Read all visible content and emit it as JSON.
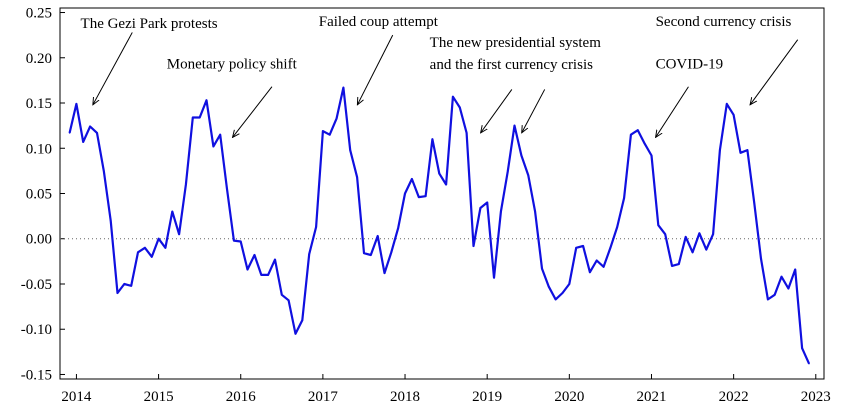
{
  "chart_data": {
    "type": "line",
    "title": "",
    "xlabel": "",
    "ylabel": "",
    "xlim": [
      2013.8,
      2023.1
    ],
    "ylim": [
      -0.155,
      0.255
    ],
    "grid": false,
    "reference_line": 0,
    "line_color": "#1010e0",
    "x_ticks": [
      "2014",
      "2015",
      "2016",
      "2017",
      "2018",
      "2019",
      "2020",
      "2021",
      "2022",
      "2023"
    ],
    "y_ticks": [
      "-0.15",
      "-0.10",
      "-0.05",
      "0.00",
      "0.05",
      "0.10",
      "0.15",
      "0.20",
      "0.25"
    ],
    "series": [
      {
        "x": [
          2013.917,
          2014.0,
          2014.083,
          2014.167,
          2014.25,
          2014.333,
          2014.417,
          2014.5,
          2014.583,
          2014.667,
          2014.75,
          2014.833,
          2014.917,
          2015.0,
          2015.083,
          2015.167,
          2015.25,
          2015.333,
          2015.417,
          2015.5,
          2015.583,
          2015.667,
          2015.75,
          2015.833,
          2015.917,
          2016.0,
          2016.083,
          2016.167,
          2016.25,
          2016.333,
          2016.417,
          2016.5,
          2016.583,
          2016.667,
          2016.75,
          2016.833,
          2016.917,
          2017.0,
          2017.083,
          2017.167,
          2017.25,
          2017.333,
          2017.417,
          2017.5,
          2017.583,
          2017.667,
          2017.75,
          2017.833,
          2017.917,
          2018.0,
          2018.083,
          2018.167,
          2018.25,
          2018.333,
          2018.417,
          2018.5,
          2018.583,
          2018.667,
          2018.75,
          2018.833,
          2018.917,
          2019.0,
          2019.083,
          2019.167,
          2019.25,
          2019.333,
          2019.417,
          2019.5,
          2019.583,
          2019.667,
          2019.75,
          2019.833,
          2019.917,
          2020.0,
          2020.083,
          2020.167,
          2020.25,
          2020.333,
          2020.417,
          2020.5,
          2020.583,
          2020.667,
          2020.75,
          2020.833,
          2020.917,
          2021.0,
          2021.083,
          2021.167,
          2021.25,
          2021.333,
          2021.417,
          2021.5,
          2021.583,
          2021.667,
          2021.75,
          2021.833,
          2021.917,
          2022.0,
          2022.083,
          2022.167,
          2022.25,
          2022.333,
          2022.417,
          2022.5,
          2022.583,
          2022.667,
          2022.75,
          2022.833,
          2022.917
        ],
        "values": [
          0.117,
          0.149,
          0.107,
          0.124,
          0.117,
          0.075,
          0.02,
          -0.06,
          -0.05,
          -0.052,
          -0.015,
          -0.01,
          -0.02,
          0.0,
          -0.01,
          0.03,
          0.005,
          0.06,
          0.134,
          0.134,
          0.153,
          0.102,
          0.115,
          0.055,
          -0.002,
          -0.003,
          -0.034,
          -0.018,
          -0.04,
          -0.04,
          -0.023,
          -0.062,
          -0.068,
          -0.105,
          -0.09,
          -0.017,
          0.013,
          0.119,
          0.115,
          0.133,
          0.167,
          0.098,
          0.068,
          -0.016,
          -0.018,
          0.003,
          -0.038,
          -0.015,
          0.012,
          0.05,
          0.066,
          0.046,
          0.047,
          0.11,
          0.072,
          0.06,
          0.157,
          0.145,
          0.117,
          -0.008,
          0.034,
          0.04,
          -0.043,
          0.03,
          0.074,
          0.125,
          0.092,
          0.07,
          0.03,
          -0.033,
          -0.053,
          -0.067,
          -0.06,
          -0.05,
          -0.01,
          -0.008,
          -0.037,
          -0.024,
          -0.031,
          -0.01,
          0.013,
          0.045,
          0.115,
          0.12,
          0.105,
          0.092,
          0.015,
          0.005,
          -0.03,
          -0.028,
          0.002,
          -0.015,
          0.006,
          -0.012,
          0.005,
          0.098,
          0.149,
          0.137,
          0.095,
          0.098,
          0.04,
          -0.022,
          -0.067,
          -0.062,
          -0.042,
          -0.055,
          -0.034,
          -0.121,
          -0.138
        ]
      }
    ],
    "annotations": [
      {
        "lines": [
          "The Gezi Park protests"
        ],
        "anchor_x": 2014.2,
        "anchor_y": 0.148,
        "text_x": 2014.05,
        "text_y": 0.233,
        "tip_x": 2014.2,
        "tip_y": 0.148,
        "tail_x": 2014.68,
        "tail_y": 0.228
      },
      {
        "lines": [
          "Monetary policy shift"
        ],
        "anchor_x": 2016.2,
        "anchor_y": 0.188,
        "text_x": 2015.1,
        "text_y": 0.188,
        "tip_x": 2015.9,
        "tip_y": 0.112,
        "tail_x": 2016.38,
        "tail_y": 0.168
      },
      {
        "lines": [
          "Failed coup attempt"
        ],
        "anchor_x": 2017.5,
        "anchor_y": 0.235,
        "text_x": 2016.95,
        "text_y": 0.235,
        "tip_x": 2017.42,
        "tip_y": 0.148,
        "tail_x": 2017.85,
        "tail_y": 0.225
      },
      {
        "lines": [
          "The new presidential system",
          "and the first currency crisis"
        ],
        "anchor_x": 2019.0,
        "anchor_y": 0.213,
        "text_x": 2018.3,
        "text_y": 0.212,
        "tip_x": 2018.92,
        "tip_y": 0.117,
        "tail_x": 2019.3,
        "tail_y": 0.165
      },
      {
        "lines": [
          "COVID-19"
        ],
        "anchor_x": 2021.0,
        "anchor_y": 0.188,
        "text_x": 2021.05,
        "text_y": 0.188,
        "tip_x": 2021.05,
        "tip_y": 0.112,
        "tail_x": 2021.45,
        "tail_y": 0.168
      },
      {
        "lines": [
          "Second currency crisis"
        ],
        "anchor_x": 2022.2,
        "anchor_y": 0.235,
        "text_x": 2021.05,
        "text_y": 0.235,
        "tip_x": 2022.2,
        "tip_y": 0.148,
        "tail_x": 2022.78,
        "tail_y": 0.22
      }
    ],
    "arrows_for_reference": [
      {
        "from": [
          2014.68,
          0.228
        ],
        "to": [
          2014.2,
          0.148
        ]
      },
      {
        "from": [
          2016.38,
          0.168
        ],
        "to": [
          2015.9,
          0.112
        ]
      },
      {
        "from": [
          2017.85,
          0.225
        ],
        "to": [
          2017.42,
          0.148
        ]
      },
      {
        "from": [
          2019.3,
          0.165
        ],
        "to": [
          2018.92,
          0.117
        ]
      },
      {
        "from": [
          2019.7,
          0.165
        ],
        "to": [
          2019.42,
          0.117
        ]
      },
      {
        "from": [
          2021.45,
          0.168
        ],
        "to": [
          2021.05,
          0.112
        ]
      },
      {
        "from": [
          2022.78,
          0.22
        ],
        "to": [
          2022.2,
          0.148
        ]
      }
    ]
  }
}
